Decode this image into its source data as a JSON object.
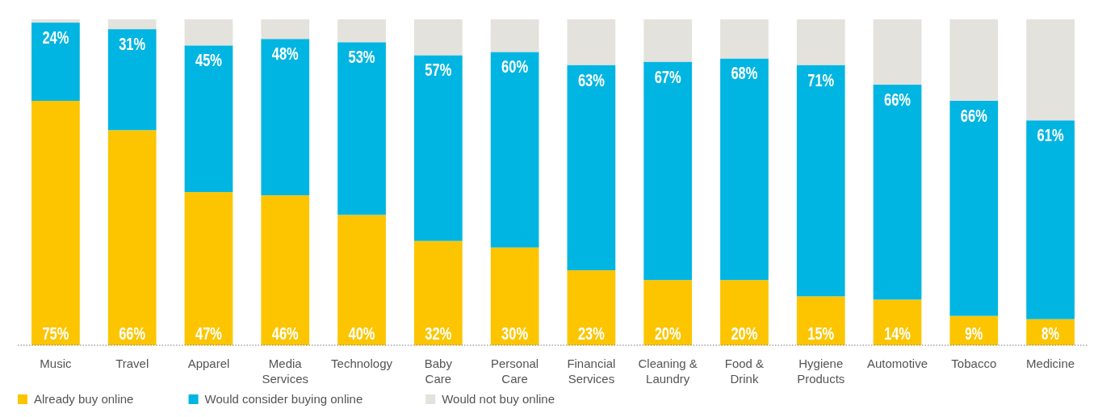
{
  "chart_data": {
    "type": "bar",
    "stacked": true,
    "categories": [
      "Music",
      "Travel",
      "Apparel",
      "Media Services",
      "Technology",
      "Baby Care",
      "Personal Care",
      "Financial Services",
      "Cleaning & Laundry",
      "Food & Drink",
      "Hygiene Products",
      "Automotive",
      "Tobacco",
      "Medicine"
    ],
    "series": [
      {
        "name": "Already buy online",
        "color": "#fcc500",
        "values": [
          75,
          66,
          47,
          46,
          40,
          32,
          30,
          23,
          20,
          20,
          15,
          14,
          9,
          8
        ],
        "value_labels": [
          "75%",
          "66%",
          "47%",
          "46%",
          "40%",
          "32%",
          "30%",
          "23%",
          "20%",
          "20%",
          "15%",
          "14%",
          "9%",
          "8%"
        ]
      },
      {
        "name": "Would consider buying online",
        "color": "#00b5e2",
        "values": [
          24,
          31,
          45,
          48,
          53,
          57,
          60,
          63,
          67,
          68,
          71,
          66,
          66,
          61
        ],
        "value_labels": [
          "24%",
          "31%",
          "45%",
          "48%",
          "53%",
          "57%",
          "60%",
          "63%",
          "67%",
          "68%",
          "71%",
          "66%",
          "66%",
          "61%"
        ]
      },
      {
        "name": "Would not buy online",
        "color": "#e4e2dc",
        "values": [
          1,
          3,
          8,
          6,
          7,
          11,
          10,
          14,
          13,
          12,
          14,
          20,
          25,
          31
        ]
      }
    ],
    "legend": "bottom left",
    "grid": false
  }
}
